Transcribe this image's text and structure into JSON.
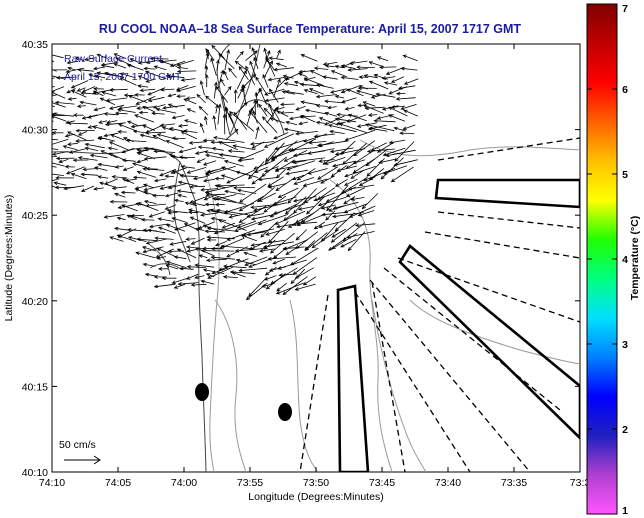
{
  "chart_data": {
    "type": "vector-map",
    "title": "RU COOL  NOAA–18  Sea Surface Temperature:  April 15, 2007 1717 GMT",
    "legend_lines": [
      "Raw Surface Current",
      "April 15, 2007 1700 GMT"
    ],
    "xlabel": "Longitude (Degrees:Minutes)",
    "ylabel": "Latitude (Degrees:Minutes)",
    "x_ticks": [
      "74:10",
      "74:05",
      "74:00",
      "73:55",
      "73:50",
      "73:45",
      "73:40",
      "73:35",
      "73:3"
    ],
    "y_ticks": [
      "40:35",
      "40:30",
      "40:25",
      "40:20",
      "40:15",
      "40:10"
    ],
    "xlim": [
      "74:10",
      "73:30"
    ],
    "ylim": [
      "40:10",
      "40:35"
    ],
    "scale_label": "50 cm/s",
    "colorbar": {
      "label": "Temperature (°C)",
      "range": [
        1,
        7
      ],
      "ticks": [
        "1",
        "2",
        "3",
        "4",
        "5",
        "6",
        "7"
      ],
      "colormap": [
        "#ff55ff",
        "#b040d0",
        "#2020c0",
        "#0000ff",
        "#0080ff",
        "#00e0ff",
        "#00ff80",
        "#20ff00",
        "#ffff00",
        "#ffc000",
        "#ff6000",
        "#ff0000",
        "#c00000",
        "#800000"
      ]
    },
    "grid": false,
    "marker_color": "#000000"
  }
}
